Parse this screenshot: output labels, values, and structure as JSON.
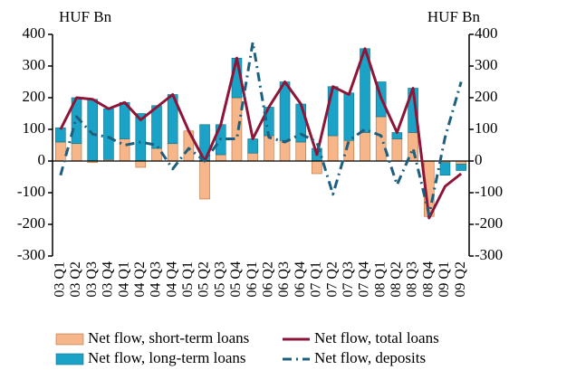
{
  "chart_data": {
    "type": "bar",
    "y_label": "HUF Bn",
    "y2_label": "HUF Bn",
    "categories": [
      "03 Q1",
      "03 Q2",
      "03 Q3",
      "03 Q4",
      "04 Q1",
      "04 Q2",
      "04 Q3",
      "04 Q4",
      "05 Q1",
      "05 Q2",
      "05 Q3",
      "05 Q4",
      "06 Q1",
      "06 Q2",
      "06 Q3",
      "06 Q4",
      "07 Q1",
      "07 Q2",
      "07 Q3",
      "07 Q4",
      "08 Q1",
      "08 Q2",
      "08 Q3",
      "08 Q4",
      "09 Q1",
      "09 Q2"
    ],
    "series": [
      {
        "name": "Net flow, short-term loans",
        "type": "bar",
        "color": "#f6b68a",
        "values": [
          60,
          55,
          -5,
          5,
          70,
          -20,
          40,
          55,
          95,
          -120,
          20,
          200,
          25,
          80,
          65,
          60,
          -40,
          80,
          65,
          90,
          140,
          70,
          90,
          -175,
          -5,
          -10
        ]
      },
      {
        "name": "Net flow, long-term loans",
        "type": "bar",
        "color": "#1aa3c6",
        "values": [
          45,
          145,
          195,
          160,
          115,
          150,
          135,
          155,
          0,
          115,
          95,
          125,
          45,
          90,
          185,
          120,
          40,
          155,
          150,
          265,
          110,
          20,
          140,
          0,
          -40,
          -20
        ]
      },
      {
        "name": "Net flow, total loans",
        "type": "line",
        "color": "#8c1538",
        "dash": false,
        "values": [
          100,
          200,
          195,
          165,
          185,
          130,
          170,
          210,
          95,
          0,
          115,
          325,
          70,
          170,
          250,
          180,
          20,
          235,
          210,
          355,
          200,
          90,
          230,
          -180,
          -80,
          -40
        ]
      },
      {
        "name": "Net flow, deposits",
        "type": "line",
        "color": "#1d5f7e",
        "dash": true,
        "values": [
          -45,
          140,
          85,
          75,
          50,
          60,
          50,
          -25,
          40,
          0,
          70,
          70,
          375,
          75,
          60,
          85,
          60,
          -105,
          65,
          100,
          80,
          -75,
          40,
          -170,
          75,
          250
        ]
      }
    ],
    "ylim": [
      -300,
      400
    ],
    "yticks": [
      -300,
      -200,
      -100,
      0,
      100,
      200,
      300,
      400
    ],
    "y2lim": [
      -300,
      400
    ],
    "y2ticks": [
      -300,
      -200,
      -100,
      0,
      100,
      200,
      300,
      400
    ]
  }
}
